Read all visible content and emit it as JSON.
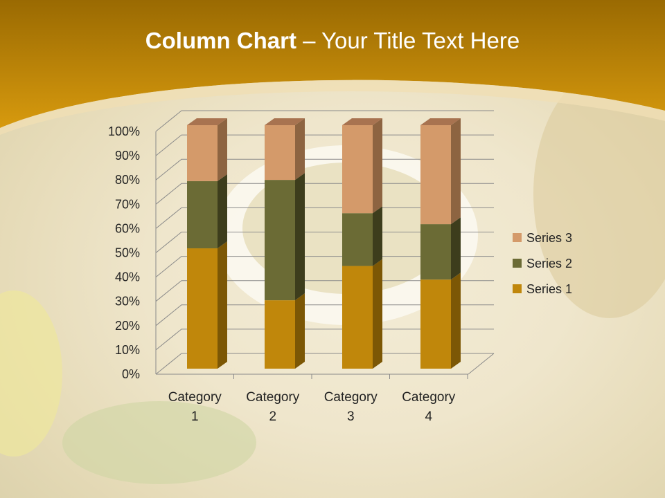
{
  "slide": {
    "title_bold": "Column Chart",
    "title_rest": " – Your Title Text Here"
  },
  "colors": {
    "header": "#C98F0C",
    "series1": "#C0870B",
    "series2": "#6B6B35",
    "series3": "#D49A6A"
  },
  "chart_data": {
    "type": "bar",
    "subtype": "100% stacked column (3-D)",
    "categories": [
      "Category 1",
      "Category 2",
      "Category 3",
      "Category 4"
    ],
    "category_label_lines": [
      [
        "Category",
        "1"
      ],
      [
        "Category",
        "2"
      ],
      [
        "Category",
        "3"
      ],
      [
        "Category",
        "4"
      ]
    ],
    "series": [
      {
        "name": "Series 1",
        "values": [
          4.3,
          2.5,
          3.5,
          4.5
        ]
      },
      {
        "name": "Series 2",
        "values": [
          2.4,
          4.4,
          1.8,
          2.8
        ]
      },
      {
        "name": "Series 3",
        "values": [
          2,
          2,
          3,
          5
        ]
      }
    ],
    "yticks": [
      "0%",
      "10%",
      "20%",
      "30%",
      "40%",
      "50%",
      "60%",
      "70%",
      "80%",
      "90%",
      "100%"
    ],
    "ylim": [
      0,
      100
    ],
    "grid": true,
    "legend_position": "right",
    "legend_order": [
      "Series 3",
      "Series 2",
      "Series 1"
    ]
  }
}
